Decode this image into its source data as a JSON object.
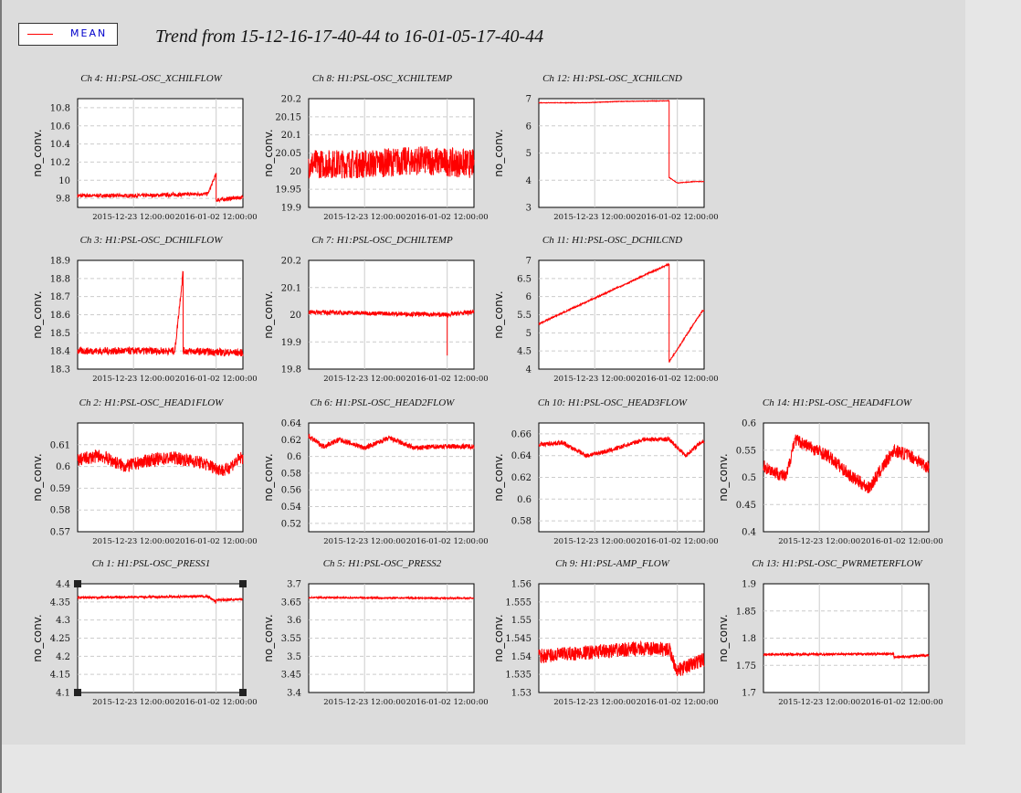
{
  "title": "Trend from 15-12-16-17-40-44 to 16-01-05-17-40-44",
  "legend": {
    "label": "MEAN",
    "color": "#ff0000"
  },
  "colors": {
    "series": "#ff0000",
    "plot_bg": "#ffffff",
    "grid": "#cccccc"
  },
  "chart_data": [
    {
      "channel": "Ch 4: H1:PSL-OSC_XCHILFLOW",
      "type": "line",
      "ylabel": "no_conv.",
      "ylim": [
        9.7,
        10.9
      ],
      "yticks": [
        "9.8",
        "10",
        "10.2",
        "10.4",
        "10.6",
        "10.8"
      ],
      "xticks": [
        "2015-12-23 12:00:00",
        "2016-01-02 12:00:00"
      ],
      "x": [
        "2015-12-16",
        "2015-12-20",
        "2015-12-24",
        "2015-12-28",
        "2016-01-01",
        "2016-01-02",
        "2016-01-02",
        "2016-01-05"
      ],
      "values": [
        9.83,
        9.83,
        9.83,
        9.84,
        9.85,
        10.07,
        9.78,
        9.81
      ],
      "noise": 0.02
    },
    {
      "channel": "Ch 8: H1:PSL-OSC_XCHILTEMP",
      "type": "line",
      "ylabel": "no_conv.",
      "ylim": [
        19.9,
        20.2
      ],
      "yticks": [
        "19.9",
        "19.95",
        "20",
        "20.05",
        "20.1",
        "20.15",
        "20.2"
      ],
      "xticks": [
        "2015-12-23 12:00:00",
        "2016-01-02 12:00:00"
      ],
      "x": [
        "2015-12-16",
        "2015-12-23",
        "2015-12-30",
        "2016-01-05"
      ],
      "values": [
        20.02,
        20.02,
        20.03,
        20.02
      ],
      "noise": 0.04
    },
    {
      "channel": "Ch 12: H1:PSL-OSC_XCHILCND",
      "type": "line",
      "ylabel": "no_conv.",
      "ylim": [
        3,
        7
      ],
      "yticks": [
        "3",
        "4",
        "5",
        "6",
        "7"
      ],
      "xticks": [
        "2015-12-23 12:00:00",
        "2016-01-02 12:00:00"
      ],
      "x": [
        "2015-12-16",
        "2015-12-22",
        "2015-12-26",
        "2016-01-01",
        "2016-01-01",
        "2016-01-02",
        "2016-01-04"
      ],
      "values": [
        6.85,
        6.85,
        6.9,
        6.92,
        4.1,
        3.9,
        3.95
      ],
      "noise": 0.01
    },
    {
      "channel": "Ch 3: H1:PSL-OSC_DCHILFLOW",
      "type": "line",
      "ylabel": "no_conv.",
      "ylim": [
        18.3,
        18.9
      ],
      "yticks": [
        "18.3",
        "18.4",
        "18.5",
        "18.6",
        "18.7",
        "18.8",
        "18.9"
      ],
      "xticks": [
        "2015-12-23 12:00:00",
        "2016-01-02 12:00:00"
      ],
      "x": [
        "2015-12-16",
        "2015-12-28",
        "2015-12-29",
        "2015-12-29",
        "2016-01-05"
      ],
      "values": [
        18.4,
        18.4,
        18.84,
        18.4,
        18.39
      ],
      "noise": 0.02
    },
    {
      "channel": "Ch 7: H1:PSL-OSC_DCHILTEMP",
      "type": "line",
      "ylabel": "no_conv.",
      "ylim": [
        19.8,
        20.2
      ],
      "yticks": [
        "19.8",
        "19.9",
        "20",
        "20.1",
        "20.2"
      ],
      "xticks": [
        "2015-12-23 12:00:00",
        "2016-01-02 12:00:00"
      ],
      "x": [
        "2015-12-16",
        "2016-01-02",
        "2016-01-02",
        "2016-01-02",
        "2016-01-05"
      ],
      "values": [
        20.01,
        20.0,
        19.85,
        20.0,
        20.01
      ],
      "noise": 0.008
    },
    {
      "channel": "Ch 11: H1:PSL-OSC_DCHILCND",
      "type": "line",
      "ylabel": "no_conv.",
      "ylim": [
        4,
        7
      ],
      "yticks": [
        "4",
        "4.5",
        "5",
        "5.5",
        "6",
        "6.5",
        "7"
      ],
      "xticks": [
        "2015-12-23 12:00:00",
        "2016-01-02 12:00:00"
      ],
      "x": [
        "2015-12-16",
        "2016-01-01",
        "2016-01-01",
        "2016-01-05"
      ],
      "values": [
        5.25,
        6.9,
        4.2,
        5.6
      ],
      "noise": 0.02
    },
    {
      "channel": "Ch 2: H1:PSL-OSC_HEAD1FLOW",
      "type": "line",
      "ylabel": "no_conv.",
      "ylim": [
        0.57,
        0.62
      ],
      "yticks": [
        "0.57",
        "0.58",
        "0.59",
        "0.6",
        "0.61"
      ],
      "xticks": [
        "2015-12-23 12:00:00",
        "2016-01-02 12:00:00"
      ],
      "x": [
        "2015-12-16",
        "2015-12-19",
        "2015-12-22",
        "2015-12-25",
        "2015-12-28",
        "2015-12-31",
        "2016-01-03",
        "2016-01-05"
      ],
      "values": [
        0.603,
        0.605,
        0.6,
        0.603,
        0.604,
        0.602,
        0.598,
        0.604
      ],
      "noise": 0.003
    },
    {
      "channel": "Ch 6: H1:PSL-OSC_HEAD2FLOW",
      "type": "line",
      "ylabel": "no_conv.",
      "ylim": [
        0.51,
        0.64
      ],
      "yticks": [
        "0.52",
        "0.54",
        "0.56",
        "0.58",
        "0.6",
        "0.62",
        "0.64"
      ],
      "xticks": [
        "2015-12-23 12:00:00",
        "2016-01-02 12:00:00"
      ],
      "x": [
        "2015-12-16",
        "2015-12-18",
        "2015-12-20",
        "2015-12-23",
        "2015-12-26",
        "2015-12-29",
        "2016-01-01",
        "2016-01-05"
      ],
      "values": [
        0.624,
        0.612,
        0.62,
        0.61,
        0.622,
        0.61,
        0.612,
        0.612
      ],
      "noise": 0.003
    },
    {
      "channel": "Ch 10: H1:PSL-OSC_HEAD3FLOW",
      "type": "line",
      "ylabel": "no_conv.",
      "ylim": [
        0.57,
        0.67
      ],
      "yticks": [
        "0.58",
        "0.6",
        "0.62",
        "0.64",
        "0.66"
      ],
      "xticks": [
        "2015-12-23 12:00:00",
        "2016-01-02 12:00:00"
      ],
      "x": [
        "2015-12-16",
        "2015-12-19",
        "2015-12-22",
        "2015-12-25",
        "2015-12-29",
        "2016-01-01",
        "2016-01-03",
        "2016-01-05"
      ],
      "values": [
        0.65,
        0.652,
        0.64,
        0.645,
        0.655,
        0.655,
        0.64,
        0.653
      ],
      "noise": 0.002
    },
    {
      "channel": "Ch 14: H1:PSL-OSC_HEAD4FLOW",
      "type": "line",
      "ylabel": "no_conv.",
      "ylim": [
        0.4,
        0.6
      ],
      "yticks": [
        "0.4",
        "0.45",
        "0.5",
        "0.55",
        "0.6"
      ],
      "xticks": [
        "2015-12-23 12:00:00",
        "2016-01-02 12:00:00"
      ],
      "x": [
        "2015-12-16",
        "2015-12-19",
        "2015-12-20",
        "2015-12-24",
        "2015-12-27",
        "2015-12-29",
        "2016-01-01",
        "2016-01-03",
        "2016-01-05"
      ],
      "values": [
        0.52,
        0.5,
        0.57,
        0.54,
        0.5,
        0.48,
        0.55,
        0.54,
        0.52
      ],
      "noise": 0.012
    },
    {
      "channel": "Ch 1: H1:PSL-OSC_PRESS1",
      "type": "line",
      "ylabel": "no_conv.",
      "ylim": [
        4.1,
        4.4
      ],
      "yticks": [
        "4.1",
        "4.15",
        "4.2",
        "4.25",
        "4.3",
        "4.35",
        "4.4"
      ],
      "xticks": [
        "2015-12-23 12:00:00",
        "2016-01-02 12:00:00"
      ],
      "x": [
        "2015-12-16",
        "2016-01-01",
        "2016-01-02",
        "2016-01-02",
        "2016-01-05"
      ],
      "values": [
        4.362,
        4.365,
        4.35,
        4.355,
        4.357
      ],
      "noise": 0.003
    },
    {
      "channel": "Ch 5: H1:PSL-OSC_PRESS2",
      "type": "line",
      "ylabel": "no_conv.",
      "ylim": [
        3.4,
        3.7
      ],
      "yticks": [
        "3.4",
        "3.45",
        "3.5",
        "3.55",
        "3.6",
        "3.65",
        "3.7"
      ],
      "xticks": [
        "2015-12-23 12:00:00",
        "2016-01-02 12:00:00"
      ],
      "x": [
        "2015-12-16",
        "2016-01-05"
      ],
      "values": [
        3.662,
        3.66
      ],
      "noise": 0.002
    },
    {
      "channel": "Ch 9: H1:PSL-AMP_FLOW",
      "type": "line",
      "ylabel": "no_conv.",
      "ylim": [
        1.53,
        1.56
      ],
      "yticks": [
        "1.53",
        "1.535",
        "1.54",
        "1.545",
        "1.55",
        "1.555",
        "1.56"
      ],
      "xticks": [
        "2015-12-23 12:00:00",
        "2016-01-02 12:00:00"
      ],
      "x": [
        "2015-12-16",
        "2015-12-22",
        "2015-12-28",
        "2016-01-01",
        "2016-01-02",
        "2016-01-05"
      ],
      "values": [
        1.54,
        1.541,
        1.542,
        1.542,
        1.536,
        1.539
      ],
      "noise": 0.002
    },
    {
      "channel": "Ch 13: H1:PSL-OSC_PWRMETERFLOW",
      "type": "line",
      "ylabel": "no_conv.",
      "ylim": [
        1.7,
        1.9
      ],
      "yticks": [
        "1.7",
        "1.75",
        "1.8",
        "1.85",
        "1.9"
      ],
      "xticks": [
        "2015-12-23 12:00:00",
        "2016-01-02 12:00:00"
      ],
      "x": [
        "2015-12-16",
        "2016-01-01",
        "2016-01-01",
        "2016-01-05"
      ],
      "values": [
        1.77,
        1.771,
        1.765,
        1.768
      ],
      "noise": 0.002
    }
  ]
}
